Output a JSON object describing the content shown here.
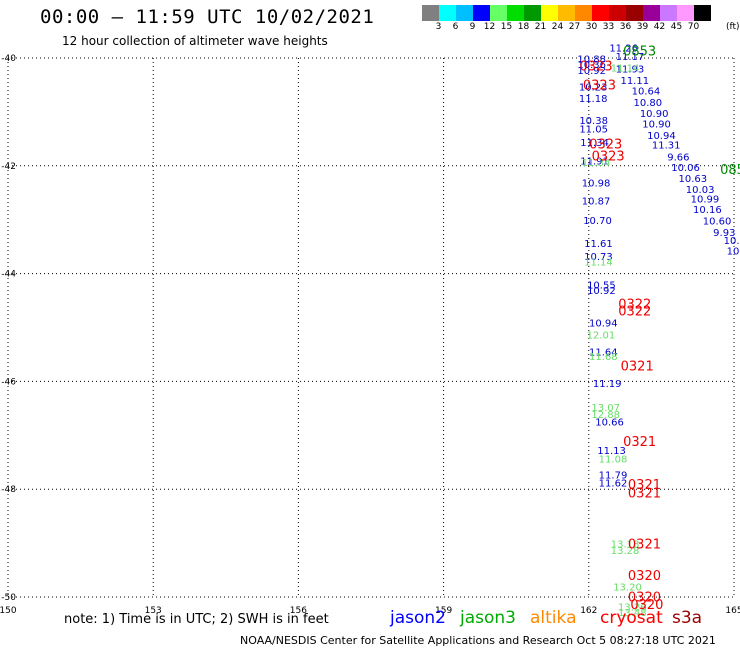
{
  "header": {
    "title": "00:00 – 11:59 UTC 10/02/2021",
    "subtitle": "12 hour collection of altimeter wave heights"
  },
  "scale": {
    "colors": [
      "#808080",
      "#00ffff",
      "#00bfff",
      "#0000ff",
      "#66ff66",
      "#00dd00",
      "#009900",
      "#ffff00",
      "#ffbb00",
      "#ff8800",
      "#ff0000",
      "#cc0000",
      "#990000",
      "#990099",
      "#cc77ff",
      "#ff99ff",
      "#000000"
    ],
    "labels": [
      "3",
      "6",
      "9",
      "12",
      "15",
      "18",
      "21",
      "24",
      "27",
      "30",
      "33",
      "36",
      "39",
      "42",
      "45",
      "70"
    ],
    "unit": "(ft)"
  },
  "axes": {
    "lon_labels": [
      "150",
      "153",
      "156",
      "159",
      "162",
      "165"
    ],
    "lat_labels": [
      "-40",
      "-42",
      "-44",
      "-46",
      "-48",
      "-50"
    ]
  },
  "observations": {
    "jason2_track": [
      {
        "lon": 162.06,
        "lat": -40.08,
        "v": "10.88"
      },
      {
        "lon": 162.06,
        "lat": -40.19,
        "v": "10.36"
      },
      {
        "lon": 162.06,
        "lat": -40.3,
        "v": "10.92"
      },
      {
        "lon": 162.09,
        "lat": -40.6,
        "v": "10.23"
      },
      {
        "lon": 162.09,
        "lat": -40.82,
        "v": "11.18"
      },
      {
        "lon": 162.1,
        "lat": -41.22,
        "v": "10.38"
      },
      {
        "lon": 162.1,
        "lat": -41.38,
        "v": "11.05"
      },
      {
        "lon": 162.12,
        "lat": -41.63,
        "v": "11.34"
      },
      {
        "lon": 162.12,
        "lat": -41.98,
        "v": "11.91"
      },
      {
        "lon": 162.15,
        "lat": -42.38,
        "v": "10.98"
      },
      {
        "lon": 162.15,
        "lat": -42.72,
        "v": "10.87"
      },
      {
        "lon": 162.18,
        "lat": -43.08,
        "v": "10.70"
      },
      {
        "lon": 162.2,
        "lat": -43.51,
        "v": "11.61"
      },
      {
        "lon": 162.2,
        "lat": -43.75,
        "v": "10.73"
      },
      {
        "lon": 162.26,
        "lat": -44.28,
        "v": "10.55"
      },
      {
        "lon": 162.26,
        "lat": -44.38,
        "v": "10.92"
      },
      {
        "lon": 162.3,
        "lat": -44.98,
        "v": "10.94"
      },
      {
        "lon": 162.3,
        "lat": -45.52,
        "v": "11.64"
      },
      {
        "lon": 162.38,
        "lat": -46.1,
        "v": "11.19"
      },
      {
        "lon": 162.43,
        "lat": -46.82,
        "v": "10.66"
      },
      {
        "lon": 162.47,
        "lat": -47.35,
        "v": "11.13"
      },
      {
        "lon": 162.5,
        "lat": -47.8,
        "v": "11.79"
      },
      {
        "lon": 162.5,
        "lat": -47.95,
        "v": "11.62"
      }
    ],
    "jason2_diag": [
      {
        "lon": 162.72,
        "lat": -39.88,
        "v": "11.26"
      },
      {
        "lon": 162.85,
        "lat": -40.04,
        "v": "11.17"
      },
      {
        "lon": 162.85,
        "lat": -40.27,
        "v": "11.93"
      },
      {
        "lon": 162.95,
        "lat": -40.48,
        "v": "11.11"
      },
      {
        "lon": 163.18,
        "lat": -40.68,
        "v": "10.64"
      },
      {
        "lon": 163.22,
        "lat": -40.89,
        "v": "10.80"
      },
      {
        "lon": 163.35,
        "lat": -41.09,
        "v": "10.90"
      },
      {
        "lon": 163.4,
        "lat": -41.29,
        "v": "10.90"
      },
      {
        "lon": 163.5,
        "lat": -41.5,
        "v": "10.94"
      },
      {
        "lon": 163.6,
        "lat": -41.68,
        "v": "11.31"
      },
      {
        "lon": 163.85,
        "lat": -41.9,
        "v": "9.66"
      },
      {
        "lon": 164.0,
        "lat": -42.1,
        "v": "10.06"
      },
      {
        "lon": 164.15,
        "lat": -42.3,
        "v": "10.63"
      },
      {
        "lon": 164.3,
        "lat": -42.5,
        "v": "10.03"
      },
      {
        "lon": 164.4,
        "lat": -42.68,
        "v": "10.99"
      },
      {
        "lon": 164.45,
        "lat": -42.88,
        "v": "10.16"
      },
      {
        "lon": 164.65,
        "lat": -43.09,
        "v": "10.60"
      },
      {
        "lon": 164.8,
        "lat": -43.3,
        "v": "9.93"
      }
    ],
    "jason3": [
      {
        "lon": 162.75,
        "lat": -40.25,
        "v": "11.14"
      },
      {
        "lon": 162.15,
        "lat": -42.0,
        "v": "11.34"
      },
      {
        "lon": 162.2,
        "lat": -43.85,
        "v": "11.14"
      },
      {
        "lon": 162.25,
        "lat": -45.2,
        "v": "12.01"
      },
      {
        "lon": 162.3,
        "lat": -45.6,
        "v": "11.68"
      },
      {
        "lon": 162.35,
        "lat": -46.55,
        "v": "13.07"
      },
      {
        "lon": 162.35,
        "lat": -46.68,
        "v": "12.88"
      },
      {
        "lon": 162.5,
        "lat": -47.5,
        "v": "11.08"
      },
      {
        "lon": 162.75,
        "lat": -49.08,
        "v": "13.18"
      },
      {
        "lon": 162.75,
        "lat": -49.2,
        "v": "13.28"
      },
      {
        "lon": 162.8,
        "lat": -49.88,
        "v": "13.20"
      },
      {
        "lon": 162.9,
        "lat": -50.25,
        "v": "13.26"
      },
      {
        "lon": 162.9,
        "lat": -50.35,
        "v": "13.48"
      }
    ],
    "time_labels_red": [
      {
        "lon": 162.15,
        "lat": -40.23,
        "v": "0323"
      },
      {
        "lon": 162.22,
        "lat": -40.58,
        "v": "0323"
      },
      {
        "lon": 162.35,
        "lat": -41.68,
        "v": "0323"
      },
      {
        "lon": 162.4,
        "lat": -41.9,
        "v": "0323"
      },
      {
        "lon": 162.95,
        "lat": -44.65,
        "v": "0322"
      },
      {
        "lon": 162.95,
        "lat": -44.78,
        "v": "0322"
      },
      {
        "lon": 163.0,
        "lat": -45.8,
        "v": "0321"
      },
      {
        "lon": 163.05,
        "lat": -47.2,
        "v": "0321"
      },
      {
        "lon": 163.15,
        "lat": -48.0,
        "v": "0321"
      },
      {
        "lon": 163.15,
        "lat": -48.15,
        "v": "0321"
      },
      {
        "lon": 163.15,
        "lat": -49.1,
        "v": "0321"
      },
      {
        "lon": 163.15,
        "lat": -49.68,
        "v": "0320"
      },
      {
        "lon": 163.15,
        "lat": -50.08,
        "v": "0320"
      },
      {
        "lon": 163.2,
        "lat": -50.22,
        "v": "0320"
      }
    ],
    "time_labels_green": [
      {
        "lon": 163.05,
        "lat": -39.95,
        "v": "0853"
      },
      {
        "lon": 164.97,
        "lat": -42.15,
        "v": "085"
      }
    ],
    "right_edge": [
      {
        "lon": 164.95,
        "lat": -43.45,
        "v": "10."
      },
      {
        "lon": 164.98,
        "lat": -43.65,
        "v": "10"
      }
    ]
  },
  "footer": {
    "note": "note:  1) Time is in UTC;  2) SWH is in feet",
    "legend": [
      {
        "label": "jason2",
        "color": "#0000ff"
      },
      {
        "label": "jason3",
        "color": "#00aa00"
      },
      {
        "label": "altika",
        "color": "#ff8800"
      },
      {
        "label": "cryosat",
        "color": "#ff0000"
      },
      {
        "label": "s3a",
        "color": "#990000"
      }
    ],
    "credit": "NOAA/NESDIS Center for Satellite Applications and Research    Oct  5 08:27:18 UTC 2021"
  }
}
